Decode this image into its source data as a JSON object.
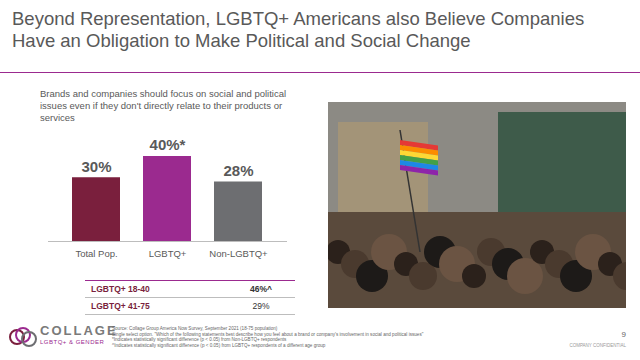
{
  "slide": {
    "title": "Beyond Representation, LGBTQ+ Americans also Believe Companies Have an Obligation to Make Political and Social Change",
    "logo": "COLLAGE",
    "logo_subtitle": "LGBTQ+ & GENDER",
    "page": "9",
    "footer": "COMPANY CONFIDENTIAL",
    "source": [
      "Source: Collage Group America Now Survey, September 2021 (18-75 population)",
      "Single select option. \"Which of the following statements best describe how you feel about a brand or company's involvement in social and political issues\"",
      "*Indicates statistically significant difference (p < 0.05) from Non-LGBTQ+ respondents",
      "^Indicates statistically significant difference (p < 0.05) from LGBTQ+ respondents of a different age group"
    ]
  },
  "chart_data": {
    "type": "bar",
    "subtitle": "Brands and companies should focus on social and political issues even if they don't directly relate to their products or services",
    "categories": [
      "Total Pop.",
      "LGBTQ+",
      "Non-LGBTQ+"
    ],
    "values": [
      30,
      40,
      28
    ],
    "value_labels": [
      "30%",
      "40%*",
      "28%"
    ],
    "colors": [
      "#7a1f3d",
      "#9b2a8f",
      "#6d6e71"
    ],
    "ylim": [
      0,
      40
    ],
    "data_labels": true,
    "tick_labels": "x",
    "breakdown": [
      {
        "label": "LGBTQ+ 18-40",
        "value": 46,
        "value_label": "46%^"
      },
      {
        "label": "LGBTQ+ 41-75",
        "value": 29,
        "value_label": "29%"
      }
    ]
  }
}
